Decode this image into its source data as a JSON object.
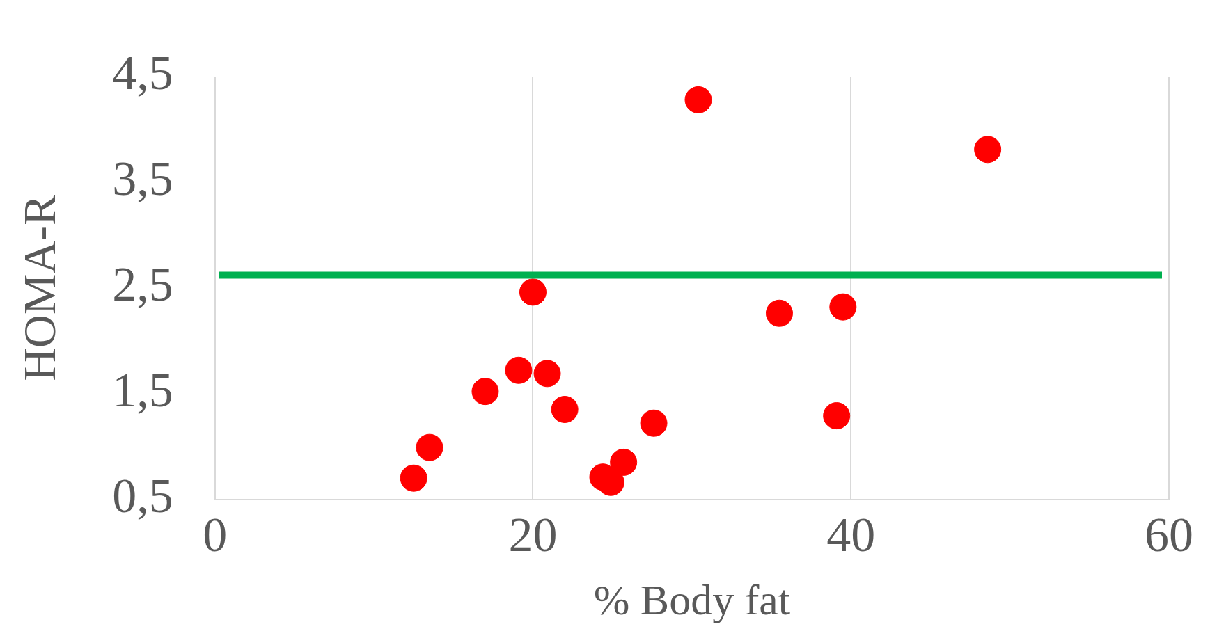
{
  "chart_data": {
    "type": "scatter",
    "xlabel": "% Body fat",
    "ylabel": "HOMA-R",
    "series": [
      {
        "color": "#ff0000",
        "x": [
          30.4,
          48.6,
          20.0,
          35.5,
          39.5,
          19.1,
          20.9,
          17.0,
          22.0,
          27.6,
          39.1,
          13.5,
          12.5,
          24.4,
          24.9,
          25.7
        ],
        "values": [
          4.28,
          3.81,
          2.46,
          2.26,
          2.32,
          1.72,
          1.69,
          1.52,
          1.35,
          1.22,
          1.29,
          0.99,
          0.7,
          0.71,
          0.66,
          0.85
        ]
      }
    ],
    "xlim": [
      0,
      60
    ],
    "xticks": [
      0,
      20,
      40,
      60
    ],
    "ylim": [
      0.5,
      4.5
    ],
    "yticks": [
      {
        "value": 0.5,
        "label": "0,5"
      },
      {
        "value": 1.5,
        "label": "1,5"
      },
      {
        "value": 2.5,
        "label": "2,5"
      },
      {
        "value": 3.5,
        "label": "3,5"
      },
      {
        "value": 4.5,
        "label": "4,5"
      }
    ],
    "ref_lines": [
      {
        "axis": "y",
        "value": 2.62,
        "color": "#00b050"
      }
    ],
    "grid": "x",
    "marker": "circle",
    "legend": false
  }
}
